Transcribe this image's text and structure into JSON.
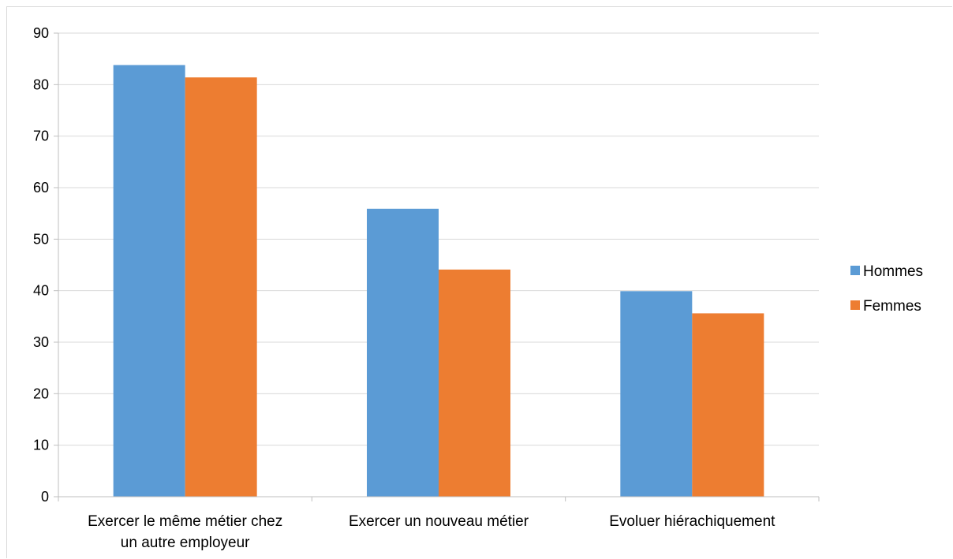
{
  "chart_data": {
    "type": "bar",
    "categories": [
      [
        "Exercer le même métier chez",
        "un autre employeur"
      ],
      [
        "Exercer un nouveau métier"
      ],
      [
        "Evoluer hiérachiquement"
      ]
    ],
    "series": [
      {
        "name": "Hommes",
        "values": [
          83.8,
          55.9,
          39.9
        ],
        "color": "#5b9bd5"
      },
      {
        "name": "Femmes",
        "values": [
          81.4,
          44.1,
          35.6
        ],
        "color": "#ed7d31"
      }
    ],
    "ylim": [
      0,
      90
    ],
    "yticks": [
      0,
      10,
      20,
      30,
      40,
      50,
      60,
      70,
      80,
      90
    ],
    "grid": true,
    "legend": "right",
    "title": "",
    "xlabel": "",
    "ylabel": ""
  }
}
